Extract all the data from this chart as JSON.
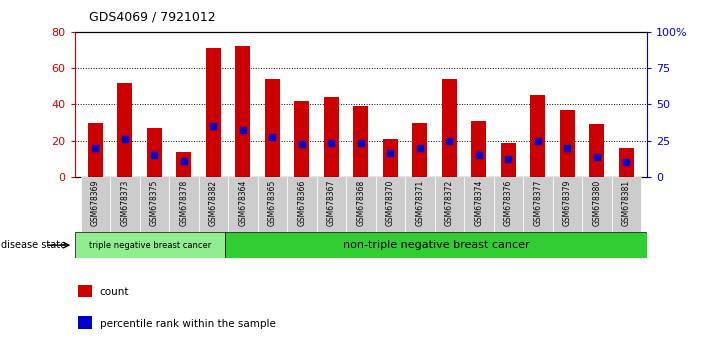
{
  "title": "GDS4069 / 7921012",
  "samples": [
    "GSM678369",
    "GSM678373",
    "GSM678375",
    "GSM678378",
    "GSM678382",
    "GSM678364",
    "GSM678365",
    "GSM678366",
    "GSM678367",
    "GSM678368",
    "GSM678370",
    "GSM678371",
    "GSM678372",
    "GSM678374",
    "GSM678376",
    "GSM678377",
    "GSM678379",
    "GSM678380",
    "GSM678381"
  ],
  "counts": [
    30,
    52,
    27,
    14,
    71,
    72,
    54,
    42,
    44,
    39,
    21,
    30,
    54,
    31,
    19,
    45,
    37,
    29,
    16
  ],
  "percentiles": [
    16,
    21,
    12,
    9,
    28,
    26,
    22,
    18,
    19,
    19,
    13,
    16,
    20,
    12,
    10,
    20,
    16,
    11,
    8
  ],
  "bar_color": "#cc0000",
  "marker_color": "#0000cc",
  "ylim_left": [
    0,
    80
  ],
  "ylim_right": [
    0,
    100
  ],
  "yticks_left": [
    0,
    20,
    40,
    60,
    80
  ],
  "yticks_right": [
    0,
    25,
    50,
    75,
    100
  ],
  "ytick_labels_right": [
    "0",
    "25",
    "50",
    "75",
    "100%"
  ],
  "group1_label": "triple negative breast cancer",
  "group2_label": "non-triple negative breast cancer",
  "group1_count": 5,
  "group2_count": 14,
  "disease_state_label": "disease state",
  "legend_count_label": "count",
  "legend_percentile_label": "percentile rank within the sample",
  "group1_color": "#90EE90",
  "group2_color": "#32CD32",
  "tick_color_left": "#cc0000",
  "tick_color_right": "#0000cc",
  "bar_width": 0.5,
  "marker_size": 4,
  "xtick_bg_color": "#cccccc",
  "fig_bg_color": "#ffffff"
}
